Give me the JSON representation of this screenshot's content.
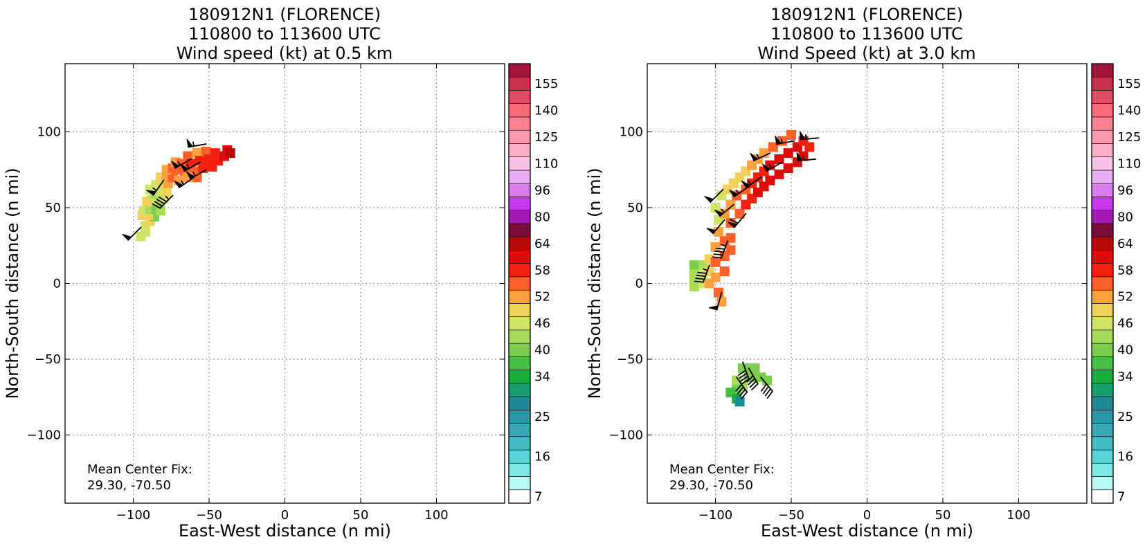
{
  "chart_data": [
    {
      "type": "heatmap",
      "title_lines": [
        "180912N1 (FLORENCE)",
        "110800 to 113600 UTC",
        "Wind speed (kt) at 0.5 km"
      ],
      "xlabel": "East-West distance (n mi)",
      "ylabel": "North-South distance (n mi)",
      "xlim": [
        -145,
        145
      ],
      "ylim": [
        -145,
        145
      ],
      "xticks": [
        -100,
        -50,
        0,
        50,
        100
      ],
      "yticks": [
        -100,
        -50,
        0,
        50,
        100
      ],
      "grid": true,
      "annotation_lines": [
        "Mean Center Fix:",
        "29.30, -70.50"
      ],
      "cells": [
        {
          "x": -95,
          "y": 31,
          "v": 46
        },
        {
          "x": -92,
          "y": 34,
          "v": 47
        },
        {
          "x": -92,
          "y": 38,
          "v": 48
        },
        {
          "x": -89,
          "y": 41,
          "v": 49
        },
        {
          "x": -86,
          "y": 44,
          "v": 42
        },
        {
          "x": -90,
          "y": 45,
          "v": 49
        },
        {
          "x": -94,
          "y": 45,
          "v": 50
        },
        {
          "x": -93,
          "y": 48,
          "v": 48
        },
        {
          "x": -89,
          "y": 49,
          "v": 43
        },
        {
          "x": -85,
          "y": 49,
          "v": 41
        },
        {
          "x": -82,
          "y": 48,
          "v": 45
        },
        {
          "x": -84,
          "y": 53,
          "v": 42
        },
        {
          "x": -88,
          "y": 55,
          "v": 46
        },
        {
          "x": -91,
          "y": 54,
          "v": 49
        },
        {
          "x": -80,
          "y": 56,
          "v": 46
        },
        {
          "x": -86,
          "y": 59,
          "v": 44
        },
        {
          "x": -82,
          "y": 61,
          "v": 47
        },
        {
          "x": -89,
          "y": 62,
          "v": 48
        },
        {
          "x": -78,
          "y": 60,
          "v": 50
        },
        {
          "x": -85,
          "y": 65,
          "v": 47
        },
        {
          "x": -81,
          "y": 66,
          "v": 50
        },
        {
          "x": -77,
          "y": 66,
          "v": 53
        },
        {
          "x": -82,
          "y": 70,
          "v": 50
        },
        {
          "x": -78,
          "y": 71,
          "v": 53
        },
        {
          "x": -74,
          "y": 70,
          "v": 55
        },
        {
          "x": -78,
          "y": 75,
          "v": 52
        },
        {
          "x": -74,
          "y": 76,
          "v": 55
        },
        {
          "x": -70,
          "y": 75,
          "v": 56
        },
        {
          "x": -72,
          "y": 80,
          "v": 54
        },
        {
          "x": -68,
          "y": 79,
          "v": 57
        },
        {
          "x": -66,
          "y": 74,
          "v": 57
        },
        {
          "x": -64,
          "y": 84,
          "v": 55
        },
        {
          "x": -62,
          "y": 79,
          "v": 58
        },
        {
          "x": -60,
          "y": 74,
          "v": 57
        },
        {
          "x": -58,
          "y": 86,
          "v": 54
        },
        {
          "x": -56,
          "y": 81,
          "v": 59
        },
        {
          "x": -54,
          "y": 76,
          "v": 58
        },
        {
          "x": -52,
          "y": 87,
          "v": 56
        },
        {
          "x": -50,
          "y": 82,
          "v": 59
        },
        {
          "x": -48,
          "y": 77,
          "v": 60
        },
        {
          "x": -46,
          "y": 86,
          "v": 58
        },
        {
          "x": -44,
          "y": 81,
          "v": 60
        },
        {
          "x": -40,
          "y": 84,
          "v": 62
        },
        {
          "x": -38,
          "y": 88,
          "v": 63
        },
        {
          "x": -36,
          "y": 86,
          "v": 65
        },
        {
          "x": -58,
          "y": 70,
          "v": 55
        },
        {
          "x": -64,
          "y": 70,
          "v": 54
        },
        {
          "x": -70,
          "y": 68,
          "v": 52
        }
      ],
      "barbs": [
        {
          "x": -95,
          "y": 37,
          "speed": 50,
          "dir": 225
        },
        {
          "x": -74,
          "y": 58,
          "speed": 45,
          "dir": 225
        },
        {
          "x": -80,
          "y": 68,
          "speed": 55,
          "dir": 215
        },
        {
          "x": -60,
          "y": 70,
          "speed": 55,
          "dir": 235
        },
        {
          "x": -62,
          "y": 82,
          "speed": 55,
          "dir": 240
        },
        {
          "x": -52,
          "y": 75,
          "speed": 55,
          "dir": 240
        },
        {
          "x": -52,
          "y": 92,
          "speed": 55,
          "dir": 260
        },
        {
          "x": -56,
          "y": 80,
          "speed": 55,
          "dir": 240
        }
      ]
    },
    {
      "type": "heatmap",
      "title_lines": [
        "180912N1 (FLORENCE)",
        "110800 to 113600 UTC",
        "Wind Speed (kt) at 3.0 km"
      ],
      "xlabel": "East-West distance (n mi)",
      "ylabel": "North-South distance (n mi)",
      "xlim": [
        -145,
        145
      ],
      "ylim": [
        -145,
        145
      ],
      "xticks": [
        -100,
        -50,
        0,
        50,
        100
      ],
      "yticks": [
        -100,
        -50,
        0,
        50,
        100
      ],
      "grid": true,
      "annotation_lines": [
        "Mean Center Fix:",
        "29.30, -70.50"
      ],
      "cells": [
        {
          "x": -114,
          "y": 12,
          "v": 42
        },
        {
          "x": -114,
          "y": 6,
          "v": 43
        },
        {
          "x": -114,
          "y": 0,
          "v": 44
        },
        {
          "x": -114,
          "y": -2,
          "v": 44
        },
        {
          "x": -108,
          "y": 12,
          "v": 45
        },
        {
          "x": -108,
          "y": 6,
          "v": 46
        },
        {
          "x": -108,
          "y": 0,
          "v": 47
        },
        {
          "x": -104,
          "y": 16,
          "v": 50
        },
        {
          "x": -104,
          "y": 8,
          "v": 51
        },
        {
          "x": -104,
          "y": 0,
          "v": 53
        },
        {
          "x": -100,
          "y": 24,
          "v": 53
        },
        {
          "x": -100,
          "y": 14,
          "v": 55
        },
        {
          "x": -100,
          "y": 4,
          "v": 54
        },
        {
          "x": -98,
          "y": -6,
          "v": 55
        },
        {
          "x": -96,
          "y": -12,
          "v": 54
        },
        {
          "x": -94,
          "y": 28,
          "v": 56
        },
        {
          "x": -94,
          "y": 18,
          "v": 57
        },
        {
          "x": -94,
          "y": 8,
          "v": 55
        },
        {
          "x": -90,
          "y": 30,
          "v": 56
        },
        {
          "x": -90,
          "y": 22,
          "v": 57
        },
        {
          "x": -98,
          "y": 34,
          "v": 52
        },
        {
          "x": -98,
          "y": 42,
          "v": 48
        },
        {
          "x": -100,
          "y": 50,
          "v": 46
        },
        {
          "x": -96,
          "y": 58,
          "v": 47
        },
        {
          "x": -94,
          "y": 46,
          "v": 53
        },
        {
          "x": -90,
          "y": 40,
          "v": 55
        },
        {
          "x": -90,
          "y": 52,
          "v": 54
        },
        {
          "x": -92,
          "y": 62,
          "v": 50
        },
        {
          "x": -88,
          "y": 66,
          "v": 49
        },
        {
          "x": -86,
          "y": 58,
          "v": 56
        },
        {
          "x": -84,
          "y": 46,
          "v": 57
        },
        {
          "x": -84,
          "y": 70,
          "v": 50
        },
        {
          "x": -80,
          "y": 62,
          "v": 57
        },
        {
          "x": -80,
          "y": 52,
          "v": 59
        },
        {
          "x": -80,
          "y": 74,
          "v": 50
        },
        {
          "x": -76,
          "y": 66,
          "v": 58
        },
        {
          "x": -76,
          "y": 56,
          "v": 60
        },
        {
          "x": -76,
          "y": 78,
          "v": 52
        },
        {
          "x": -72,
          "y": 70,
          "v": 59
        },
        {
          "x": -72,
          "y": 60,
          "v": 61
        },
        {
          "x": -72,
          "y": 82,
          "v": 53
        },
        {
          "x": -68,
          "y": 74,
          "v": 60
        },
        {
          "x": -68,
          "y": 64,
          "v": 62
        },
        {
          "x": -68,
          "y": 86,
          "v": 54
        },
        {
          "x": -64,
          "y": 78,
          "v": 61
        },
        {
          "x": -64,
          "y": 68,
          "v": 63
        },
        {
          "x": -62,
          "y": 90,
          "v": 55
        },
        {
          "x": -58,
          "y": 82,
          "v": 62
        },
        {
          "x": -58,
          "y": 72,
          "v": 63
        },
        {
          "x": -56,
          "y": 94,
          "v": 56
        },
        {
          "x": -52,
          "y": 86,
          "v": 62
        },
        {
          "x": -52,
          "y": 76,
          "v": 63
        },
        {
          "x": -50,
          "y": 98,
          "v": 55
        },
        {
          "x": -46,
          "y": 90,
          "v": 61
        },
        {
          "x": -46,
          "y": 80,
          "v": 62
        },
        {
          "x": -42,
          "y": 94,
          "v": 60
        },
        {
          "x": -42,
          "y": 84,
          "v": 61
        },
        {
          "x": -38,
          "y": 90,
          "v": 60
        },
        {
          "x": -82,
          "y": -56,
          "v": 42
        },
        {
          "x": -78,
          "y": -56,
          "v": 41
        },
        {
          "x": -74,
          "y": -56,
          "v": 40
        },
        {
          "x": -78,
          "y": -62,
          "v": 42
        },
        {
          "x": -74,
          "y": -62,
          "v": 41
        },
        {
          "x": -70,
          "y": -62,
          "v": 40
        },
        {
          "x": -66,
          "y": -64,
          "v": 41
        },
        {
          "x": -86,
          "y": -64,
          "v": 43
        },
        {
          "x": -82,
          "y": -68,
          "v": 44
        },
        {
          "x": -86,
          "y": -70,
          "v": 40
        },
        {
          "x": -90,
          "y": -72,
          "v": 37
        },
        {
          "x": -86,
          "y": -76,
          "v": 34
        },
        {
          "x": -84,
          "y": -78,
          "v": 28
        }
      ],
      "barbs": [
        {
          "x": -95,
          "y": 62,
          "speed": 50,
          "dir": 225
        },
        {
          "x": -94,
          "y": 42,
          "speed": 50,
          "dir": 220
        },
        {
          "x": -92,
          "y": 28,
          "speed": 45,
          "dir": 200
        },
        {
          "x": -104,
          "y": 12,
          "speed": 45,
          "dir": 200
        },
        {
          "x": -96,
          "y": -6,
          "speed": 50,
          "dir": 195
        },
        {
          "x": -88,
          "y": 52,
          "speed": 55,
          "dir": 230
        },
        {
          "x": -78,
          "y": 64,
          "speed": 55,
          "dir": 235
        },
        {
          "x": -80,
          "y": 46,
          "speed": 60,
          "dir": 220
        },
        {
          "x": -70,
          "y": 70,
          "speed": 55,
          "dir": 235
        },
        {
          "x": -64,
          "y": 86,
          "speed": 55,
          "dir": 245
        },
        {
          "x": -56,
          "y": 80,
          "speed": 55,
          "dir": 240
        },
        {
          "x": -48,
          "y": 94,
          "speed": 55,
          "dir": 260
        },
        {
          "x": -32,
          "y": 96,
          "speed": 55,
          "dir": 265
        },
        {
          "x": -34,
          "y": 82,
          "speed": 55,
          "dir": 265
        },
        {
          "x": -82,
          "y": -52,
          "speed": 40,
          "dir": 160
        },
        {
          "x": -86,
          "y": -62,
          "speed": 40,
          "dir": 145
        },
        {
          "x": -70,
          "y": -62,
          "speed": 40,
          "dir": 140
        },
        {
          "x": -78,
          "y": -56,
          "speed": 40,
          "dir": 150
        }
      ]
    }
  ],
  "colorbar": {
    "levels": [
      7,
      10,
      13,
      16,
      19,
      22,
      25,
      28,
      31,
      34,
      37,
      40,
      43,
      46,
      49,
      52,
      55,
      58,
      61,
      64,
      72,
      80,
      88,
      96,
      103,
      110,
      118,
      125,
      133,
      140,
      148,
      155,
      163
    ],
    "tick_labels": [
      "7",
      "16",
      "25",
      "34",
      "40",
      "46",
      "52",
      "58",
      "64",
      "80",
      "96",
      "110",
      "125",
      "140",
      "155"
    ],
    "colors": [
      "#ffffff",
      "#b8faf4",
      "#7ee8e6",
      "#56d4d8",
      "#44bcc4",
      "#38a8b4",
      "#2a96a6",
      "#1e8894",
      "#16a070",
      "#18ae3c",
      "#46c044",
      "#7ccc4e",
      "#a8dc58",
      "#d2e468",
      "#f0d25a",
      "#ffa040",
      "#ff6028",
      "#f42010",
      "#dc0c0c",
      "#b80808",
      "#7a0c3c",
      "#a418b8",
      "#c838ee",
      "#d87cf0",
      "#eaacf2",
      "#f6c2e6",
      "#fcaec8",
      "#ff98b0",
      "#ff8090",
      "#f86a78",
      "#e04c62",
      "#c8304e",
      "#a21438"
    ]
  }
}
